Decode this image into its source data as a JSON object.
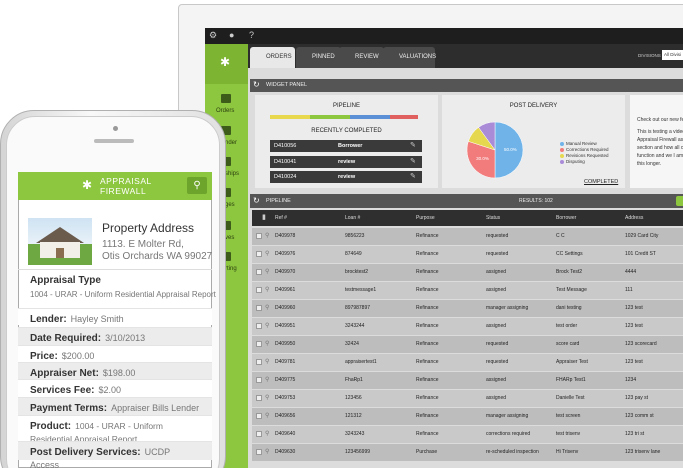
{
  "desktop": {
    "tabs": [
      "ORDERS",
      "PINNED",
      "REVIEW",
      "VALUATIONS"
    ],
    "divisions_label": "DIVISIONS",
    "divisions_value": "All Divisi",
    "sidebar": [
      "Orders",
      "nder",
      "ships",
      "ges",
      "ves",
      "rting"
    ],
    "widget_panel": "WIDGET PANEL",
    "pipeline_widget": {
      "title": "PIPELINE",
      "recent_title": "RECENTLY COMPLETED",
      "rows": [
        [
          "D410056",
          "Borrower"
        ],
        [
          "D410041",
          "review"
        ],
        [
          "D410024",
          "review"
        ]
      ]
    },
    "completed": "COMPLETED",
    "news": [
      "Check out our new fea",
      "This is testing a video",
      "Appraisal Firewall assem",
      "section and how all of",
      "function and we I am",
      "this longer."
    ],
    "pipeline": {
      "title": "PIPELINE",
      "results": "RESULTS: 102",
      "columns": [
        "Ref #",
        "Loan #",
        "Purpose",
        "Status",
        "Borrower",
        "Address"
      ],
      "rows": [
        [
          "D409978",
          "9856223",
          "Refinance",
          "requested",
          "C C",
          "1029 Card City"
        ],
        [
          "D409976",
          "874649",
          "Refinance",
          "requested",
          "CC Settings",
          "101 Credit ST"
        ],
        [
          "D409970",
          "brocktest2",
          "Refinance",
          "assigned",
          "Brock Test2",
          "4444"
        ],
        [
          "D409961",
          "testmessage1",
          "Refinance",
          "assigned",
          "Test Message",
          "111"
        ],
        [
          "D409960",
          "897987897",
          "Refinance",
          "manager assigning",
          "dani testing",
          "123 test"
        ],
        [
          "D409951",
          "3243244",
          "Refinance",
          "assigned",
          "test order",
          "123 test"
        ],
        [
          "D409950",
          "32424",
          "Refinance",
          "requested",
          "score card",
          "123 scorecard"
        ],
        [
          "D409781",
          "appraisertest1",
          "Refinance",
          "requested",
          "Appraiser Test",
          "123 test"
        ],
        [
          "D409775",
          "FhaRp1",
          "Refinance",
          "assigned",
          "FHARp Test1",
          "1234"
        ],
        [
          "D409753",
          "123456",
          "Refinance",
          "assigned",
          "Danielle Test",
          "123 pay st"
        ],
        [
          "D409656",
          "121312",
          "Refinance",
          "manager assigning",
          "test screen",
          "123 comm st"
        ],
        [
          "D409640",
          "3243243",
          "Refinance",
          "corrections required",
          "test trisenv",
          "123 tri st"
        ],
        [
          "D409630",
          "123456999",
          "Purchase",
          "re-scheduled inspection",
          "Hi Trisenv",
          "123 trisenv lane"
        ]
      ]
    }
  },
  "chart_data": {
    "type": "pie",
    "title": "POST DELIVERY",
    "categories": [
      "Manual Review",
      "Corrections Required",
      "Revisions Requested",
      "Disputing"
    ],
    "values": [
      50,
      30,
      10,
      10
    ],
    "value_labels": [
      "50.0%",
      "30.0%",
      null,
      null
    ],
    "colors": [
      "#6fb3e9",
      "#f27b7b",
      "#e6d84e",
      "#a98bd8"
    ]
  },
  "phone": {
    "logo": [
      "APPRAISAL",
      "FIREWALL"
    ],
    "address_title": "Property Address",
    "address_lines": [
      "1113. E Molter Rd,",
      "Otis Orchards WA 99027"
    ],
    "type_label": "Appraisal Type",
    "type_value": "1004 - URAR - Uniform Residential Appraisal Report",
    "fields": [
      [
        "Lender:",
        "Hayley Smith"
      ],
      [
        "Date Required:",
        "3/10/2013"
      ],
      [
        "Price:",
        "$200.00"
      ],
      [
        "Appraiser Net:",
        "$198.00"
      ],
      [
        "Services Fee:",
        "$2.00"
      ],
      [
        "Payment Terms:",
        "Appraiser Bills Lender Directly"
      ],
      [
        "Product:",
        "1004 - URAR - Uniform Residential Appraisal Report"
      ],
      [
        "Post Delivery Services:",
        "UCDP Access"
      ]
    ]
  }
}
